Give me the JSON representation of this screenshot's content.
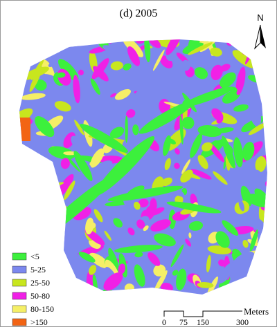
{
  "title": "(d) 2005",
  "north": "N",
  "legend": [
    {
      "label": "<5",
      "color": "#3cf03c"
    },
    {
      "label": "5-25",
      "color": "#7c88ee"
    },
    {
      "label": "25-50",
      "color": "#c8e61e"
    },
    {
      "label": "50-80",
      "color": "#f020e6"
    },
    {
      "label": "80-150",
      "color": "#f5ef66"
    },
    {
      "label": ">150",
      "color": "#f26414"
    }
  ],
  "scale_bar": {
    "unit": "Meters",
    "labels": [
      "0",
      "75",
      "150",
      "300"
    ]
  }
}
